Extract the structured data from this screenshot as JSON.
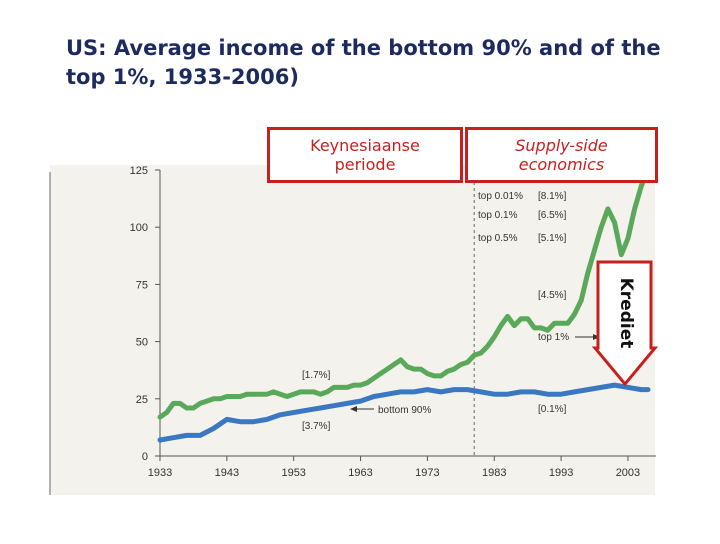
{
  "title": "US: Average income of the bottom 90% and of the top 1%, 1933-2006)",
  "overlays": {
    "keynesian": [
      "Keynesiaanse",
      "periode"
    ],
    "supply_side": [
      "Supply-side",
      "economics"
    ],
    "credit": "Krediet"
  },
  "colors": {
    "top1": "#5aa85a",
    "bottom90": "#3a78c2",
    "accent": "#c8201e",
    "title": "#1c2a5e"
  },
  "chart_data": {
    "type": "line",
    "title": "US: Average income of the bottom 90% and of the top 1%, 1933-2006)",
    "xlabel": "",
    "ylabel": "",
    "xlim": [
      1933,
      2006
    ],
    "ylim": [
      0,
      125
    ],
    "x_ticks": [
      1933,
      1943,
      1953,
      1963,
      1973,
      1983,
      1993,
      2003
    ],
    "y_ticks": [
      0,
      25,
      50,
      75,
      100,
      125
    ],
    "series": [
      {
        "name": "top 1%",
        "color": "#5aa85a",
        "x": [
          1933,
          1934,
          1935,
          1936,
          1937,
          1938,
          1939,
          1940,
          1941,
          1942,
          1943,
          1944,
          1945,
          1946,
          1947,
          1948,
          1949,
          1950,
          1951,
          1952,
          1953,
          1954,
          1955,
          1956,
          1957,
          1958,
          1959,
          1960,
          1961,
          1962,
          1963,
          1964,
          1965,
          1966,
          1967,
          1968,
          1969,
          1970,
          1971,
          1972,
          1973,
          1974,
          1975,
          1976,
          1977,
          1978,
          1979,
          1980,
          1981,
          1982,
          1983,
          1984,
          1985,
          1986,
          1987,
          1988,
          1989,
          1990,
          1991,
          1992,
          1993,
          1994,
          1995,
          1996,
          1997,
          1998,
          1999,
          2000,
          2001,
          2002,
          2003,
          2004,
          2005,
          2006
        ],
        "values": [
          17,
          19,
          23,
          23,
          21,
          21,
          23,
          24,
          25,
          25,
          26,
          26,
          26,
          27,
          27,
          27,
          27,
          28,
          27,
          26,
          27,
          28,
          28,
          28,
          27,
          28,
          30,
          30,
          30,
          31,
          31,
          32,
          34,
          36,
          38,
          40,
          42,
          39,
          38,
          38,
          36,
          35,
          35,
          37,
          38,
          40,
          41,
          44,
          45,
          48,
          52,
          57,
          61,
          57,
          60,
          60,
          56,
          56,
          55,
          58,
          58,
          58,
          62,
          68,
          80,
          90,
          100,
          108,
          102,
          88,
          95,
          108,
          118,
          125
        ]
      },
      {
        "name": "bottom 90%",
        "color": "#3a78c2",
        "x": [
          1933,
          1935,
          1937,
          1939,
          1941,
          1943,
          1945,
          1947,
          1949,
          1951,
          1953,
          1955,
          1957,
          1959,
          1961,
          1963,
          1965,
          1967,
          1969,
          1971,
          1973,
          1975,
          1977,
          1979,
          1981,
          1983,
          1985,
          1987,
          1989,
          1991,
          1993,
          1995,
          1997,
          1999,
          2001,
          2003,
          2005,
          2006
        ],
        "values": [
          7,
          8,
          9,
          9,
          12,
          16,
          15,
          15,
          16,
          18,
          19,
          20,
          21,
          22,
          23,
          24,
          26,
          27,
          28,
          28,
          29,
          28,
          29,
          29,
          28,
          27,
          27,
          28,
          28,
          27,
          27,
          28,
          29,
          30,
          31,
          30,
          29,
          29
        ]
      }
    ],
    "annotations": [
      {
        "text": "top 0.01%",
        "value": "[8.1%]"
      },
      {
        "text": "top 0.1%",
        "value": "[6.5%]"
      },
      {
        "text": "top 0.5%",
        "value": "[5.1%]"
      },
      {
        "text": "",
        "value": "[4.5%]"
      },
      {
        "text": "top 1%",
        "value": ""
      },
      {
        "text": "",
        "value": "[1.7%]"
      },
      {
        "text": "bottom 90%",
        "value": ""
      },
      {
        "text": "",
        "value": "[3.7%]"
      },
      {
        "text": "",
        "value": "[0.1%]"
      }
    ],
    "divider_year": 1980,
    "grid": false,
    "legend": "none"
  }
}
